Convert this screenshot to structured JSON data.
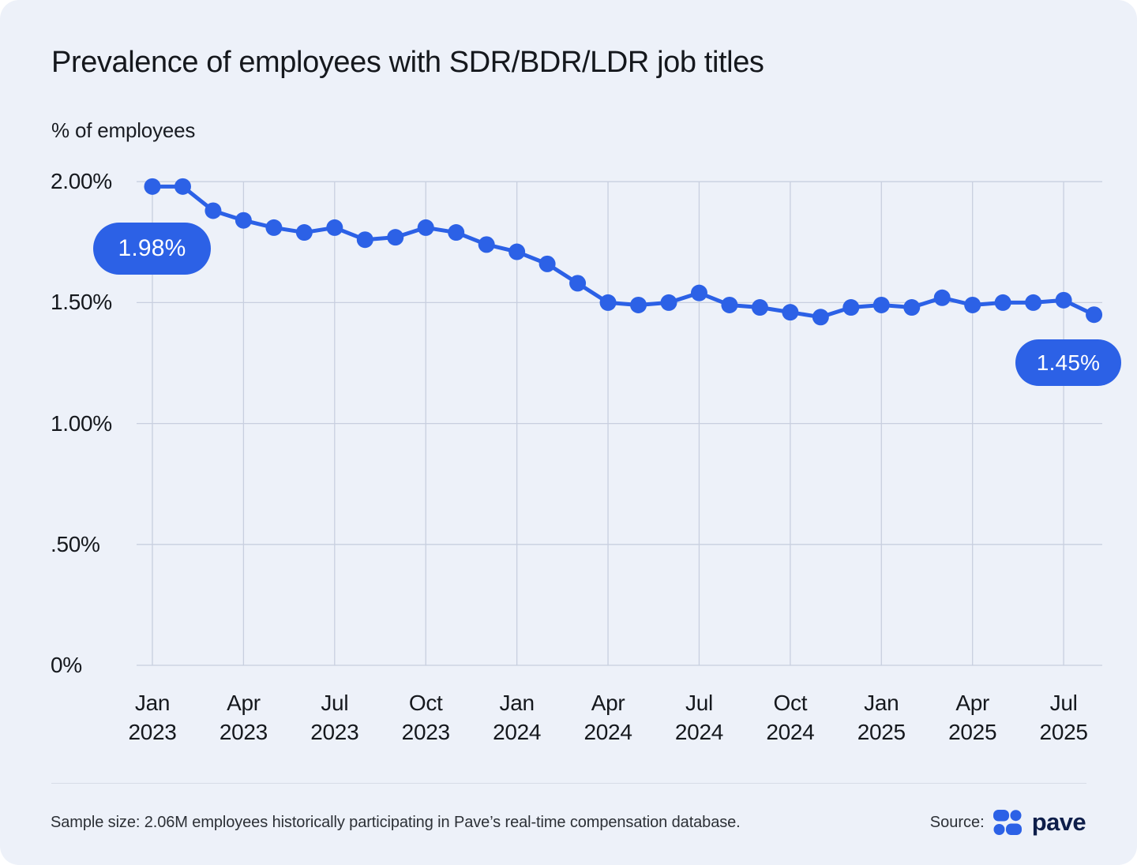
{
  "header": {
    "title": "Prevalence of employees with SDR/BDR/LDR job titles"
  },
  "chart_data": {
    "type": "line",
    "title": "Prevalence of employees with SDR/BDR/LDR job titles",
    "ylabel": "% of employees",
    "xlabel": "",
    "x": [
      "Jan 2023",
      "Feb 2023",
      "Mar 2023",
      "Apr 2023",
      "May 2023",
      "Jun 2023",
      "Jul 2023",
      "Aug 2023",
      "Sep 2023",
      "Oct 2023",
      "Nov 2023",
      "Dec 2023",
      "Jan 2024",
      "Feb 2024",
      "Mar 2024",
      "Apr 2024",
      "May 2024",
      "Jun 2024",
      "Jul 2024",
      "Aug 2024",
      "Sep 2024",
      "Oct 2024",
      "Nov 2024",
      "Dec 2024",
      "Jan 2025",
      "Feb 2025",
      "Mar 2025",
      "Apr 2025",
      "May 2025",
      "Jun 2025",
      "Jul 2025",
      "Aug 2025"
    ],
    "values": [
      1.98,
      1.98,
      1.88,
      1.84,
      1.81,
      1.79,
      1.81,
      1.76,
      1.77,
      1.81,
      1.79,
      1.74,
      1.71,
      1.66,
      1.58,
      1.5,
      1.49,
      1.5,
      1.54,
      1.49,
      1.48,
      1.46,
      1.44,
      1.48,
      1.49,
      1.48,
      1.52,
      1.49,
      1.5,
      1.5,
      1.51,
      1.45
    ],
    "ylim": [
      0,
      2.0
    ],
    "yticks": [
      {
        "value": 2.0,
        "label": "2.00%"
      },
      {
        "value": 1.5,
        "label": "1.50%"
      },
      {
        "value": 1.0,
        "label": "1.00%"
      },
      {
        "value": 0.5,
        "label": ".50%"
      },
      {
        "value": 0.0,
        "label": "0%"
      }
    ],
    "xticks": [
      {
        "month": "Jan",
        "year": "2023"
      },
      {
        "month": "Apr",
        "year": "2023"
      },
      {
        "month": "Jul",
        "year": "2023"
      },
      {
        "month": "Oct",
        "year": "2023"
      },
      {
        "month": "Jan",
        "year": "2024"
      },
      {
        "month": "Apr",
        "year": "2024"
      },
      {
        "month": "Jul",
        "year": "2024"
      },
      {
        "month": "Oct",
        "year": "2024"
      },
      {
        "month": "Jan",
        "year": "2025"
      },
      {
        "month": "Apr",
        "year": "2025"
      },
      {
        "month": "Jul",
        "year": "2025"
      }
    ],
    "grid": true,
    "legend": "none",
    "annotations": {
      "first_point_label": "1.98%",
      "last_point_label": "1.45%"
    },
    "colors": {
      "line": "#2c61e6",
      "dot": "#2c61e6",
      "grid": "#c8cfdf",
      "label_pill_bg": "#2c61e6",
      "label_pill_text": "#ffffff",
      "background": "#edf1f9"
    }
  },
  "footer": {
    "sample_size": "Sample size: 2.06M employees historically participating in Pave’s real-time compensation database.",
    "source_label": "Source:",
    "source_brand": "pave"
  }
}
